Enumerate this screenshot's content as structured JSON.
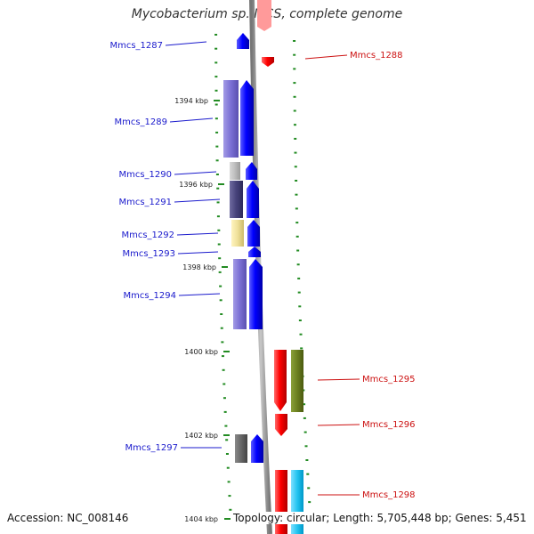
{
  "title": "Mycobacterium sp. MCS, complete genome",
  "footer": {
    "accession": "Accession: NC_008146",
    "topology": "Topology: circular; Length: 5,705,448 bp; Genes: 5,451"
  },
  "ticks": [
    {
      "label": "1394 kbp"
    },
    {
      "label": "1396 kbp"
    },
    {
      "label": "1398 kbp"
    },
    {
      "label": "1400 kbp"
    },
    {
      "label": "1402 kbp"
    },
    {
      "label": "1404 kbp"
    }
  ],
  "genes_left": [
    {
      "name": "Mmcs_1287",
      "color": "#1a1acc"
    },
    {
      "name": "Mmcs_1289",
      "color": "#1a1acc"
    },
    {
      "name": "Mmcs_1290",
      "color": "#1a1acc"
    },
    {
      "name": "Mmcs_1291",
      "color": "#1a1acc"
    },
    {
      "name": "Mmcs_1292",
      "color": "#1a1acc"
    },
    {
      "name": "Mmcs_1293",
      "color": "#1a1acc"
    },
    {
      "name": "Mmcs_1294",
      "color": "#1a1acc"
    },
    {
      "name": "Mmcs_1297",
      "color": "#1a1acc"
    }
  ],
  "genes_right": [
    {
      "name": "Mmcs_1288",
      "color": "#cc1111"
    },
    {
      "name": "Mmcs_1295",
      "color": "#cc1111"
    },
    {
      "name": "Mmcs_1296",
      "color": "#cc1111"
    },
    {
      "name": "Mmcs_1298",
      "color": "#cc1111"
    }
  ],
  "colors": {
    "forward_strand": "#0000ff",
    "reverse_strand": "#ff0000",
    "backbone": "#9a9a9a",
    "dots": "#228b22"
  }
}
